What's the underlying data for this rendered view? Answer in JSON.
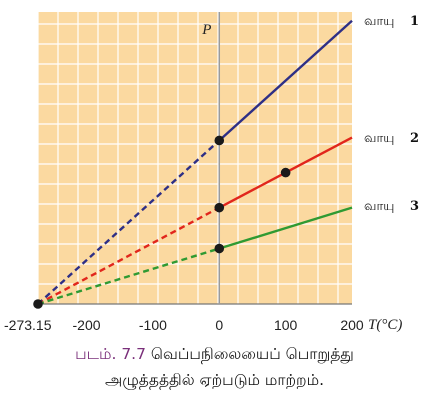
{
  "chart_data": {
    "type": "line",
    "x_axis_label": "T(°C)",
    "y_axis_label": "P",
    "xlim": [
      -273.15,
      200
    ],
    "ylim": [
      0,
      1.0
    ],
    "x_ticks": [
      "-273.15",
      "-200",
      "-100",
      "0",
      "100",
      "200"
    ],
    "x_tick_values": [
      -273.15,
      -200,
      -100,
      0,
      100,
      200
    ],
    "grid": true,
    "background_color": "#fbd9a0",
    "grid_color": "#ffffff",
    "extrapolated_style": "dashed",
    "series": [
      {
        "name": "வாயு",
        "number": "1",
        "color": "#2e2f86",
        "x": [
          -273.15,
          0,
          200
        ],
        "y": [
          0.0,
          0.56,
          0.97
        ],
        "marked_points": [
          [
            0,
            0.56
          ]
        ]
      },
      {
        "name": "வாயு",
        "number": "2",
        "color": "#e1261c",
        "x": [
          -273.15,
          0,
          100,
          200
        ],
        "y": [
          0.0,
          0.33,
          0.45,
          0.57
        ],
        "marked_points": [
          [
            0,
            0.33
          ],
          [
            100,
            0.45
          ]
        ]
      },
      {
        "name": "வாயு",
        "number": "3",
        "color": "#2f9a32",
        "x": [
          -273.15,
          0,
          200
        ],
        "y": [
          0.0,
          0.19,
          0.33
        ],
        "marked_points": [
          [
            0,
            0.19
          ]
        ]
      }
    ],
    "origin_point": [
      -273.15,
      0.0
    ]
  },
  "caption": {
    "figure_label": "படம். 7.7",
    "line1_text": "வெப்பநிலையைப் பொறுத்து",
    "line2_text": "அழுத்தத்தில் ஏற்படும் மாற்றம்."
  }
}
